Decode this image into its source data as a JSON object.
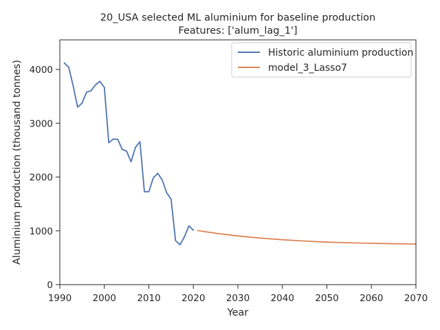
{
  "chart_data": {
    "type": "line",
    "title": "20_USA selected ML aluminium for baseline production",
    "subtitle": "Features: ['alum_lag_1']",
    "xlabel": "Year",
    "ylabel": "Aluminium production (thousand tonnes)",
    "xlim": [
      1990,
      2070
    ],
    "ylim": [
      0,
      4550
    ],
    "xticks": [
      1990,
      2000,
      2010,
      2020,
      2030,
      2040,
      2050,
      2060,
      2070
    ],
    "yticks": [
      0,
      1000,
      2000,
      3000,
      4000
    ],
    "grid": false,
    "legend_position": "top-right",
    "series": [
      {
        "name": "Historic aluminium production",
        "color": "#4c72b0",
        "x": [
          1991,
          1992,
          1993,
          1994,
          1995,
          1996,
          1997,
          1998,
          1999,
          2000,
          2001,
          2002,
          2003,
          2004,
          2005,
          2006,
          2007,
          2008,
          2009,
          2010,
          2011,
          2012,
          2013,
          2014,
          2015,
          2016,
          2017,
          2018,
          2019,
          2020
        ],
        "y": [
          4121,
          4042,
          3695,
          3299,
          3375,
          3577,
          3603,
          3713,
          3779,
          3668,
          2637,
          2705,
          2703,
          2516,
          2481,
          2284,
          2554,
          2658,
          1727,
          1727,
          1986,
          2070,
          1946,
          1710,
          1587,
          818,
          741,
          891,
          1093,
          1012
        ]
      },
      {
        "name": "model_3_Lasso7",
        "color": "#dd8452",
        "x": [
          2021,
          2025,
          2030,
          2035,
          2040,
          2045,
          2050,
          2055,
          2060,
          2065,
          2070
        ],
        "y": [
          1005,
          955,
          905,
          865,
          835,
          810,
          790,
          778,
          768,
          760,
          756
        ]
      }
    ]
  }
}
